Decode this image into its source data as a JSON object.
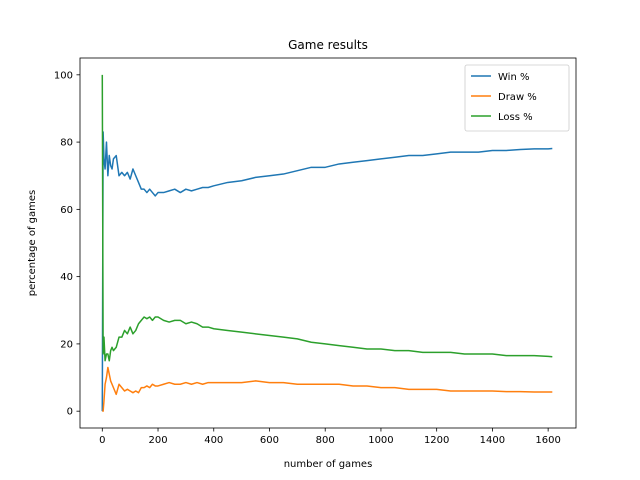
{
  "chart_data": {
    "type": "line",
    "title": "Game results",
    "xlabel": "number of games",
    "ylabel": "percentage of games",
    "xlim": [
      -80,
      1700
    ],
    "ylim": [
      -5,
      105
    ],
    "xticks": [
      0,
      200,
      400,
      600,
      800,
      1000,
      1200,
      1400,
      1600
    ],
    "yticks": [
      0,
      20,
      40,
      60,
      80,
      100
    ],
    "grid": false,
    "legend": "top-right",
    "series": [
      {
        "name": "Win %",
        "color": "#1f77b4",
        "x": [
          0,
          3,
          6,
          10,
          15,
          20,
          25,
          30,
          35,
          40,
          50,
          60,
          70,
          80,
          90,
          100,
          110,
          120,
          130,
          140,
          150,
          160,
          170,
          180,
          190,
          200,
          220,
          240,
          260,
          280,
          300,
          320,
          340,
          360,
          380,
          400,
          450,
          500,
          550,
          600,
          650,
          700,
          750,
          800,
          850,
          900,
          950,
          1000,
          1050,
          1100,
          1150,
          1200,
          1250,
          1300,
          1350,
          1400,
          1450,
          1500,
          1550,
          1600,
          1615
        ],
        "y": [
          0,
          83,
          75,
          72,
          80,
          70,
          76,
          73,
          72,
          75,
          76,
          70,
          71,
          70,
          71,
          69,
          72,
          70,
          68,
          66,
          66,
          65,
          66,
          65,
          64,
          65,
          65,
          65.5,
          66,
          65,
          66,
          65.5,
          66,
          66.5,
          66.5,
          67,
          68,
          68.5,
          69.5,
          70,
          70.5,
          71.5,
          72.5,
          72.5,
          73.5,
          74,
          74.5,
          75,
          75.5,
          76,
          76,
          76.5,
          77,
          77,
          77,
          77.5,
          77.5,
          77.8,
          78,
          78,
          78.1
        ]
      },
      {
        "name": "Draw %",
        "color": "#ff7f0e",
        "x": [
          0,
          3,
          6,
          10,
          15,
          20,
          25,
          30,
          35,
          40,
          50,
          60,
          70,
          80,
          90,
          100,
          110,
          120,
          130,
          140,
          150,
          160,
          170,
          180,
          190,
          200,
          220,
          240,
          260,
          280,
          300,
          320,
          340,
          360,
          380,
          400,
          450,
          500,
          550,
          600,
          650,
          700,
          750,
          800,
          850,
          900,
          950,
          1000,
          1050,
          1100,
          1150,
          1200,
          1250,
          1300,
          1350,
          1400,
          1450,
          1500,
          1550,
          1600,
          1615
        ],
        "y": [
          0,
          0,
          3,
          8,
          10,
          13,
          11,
          9,
          8,
          7,
          5,
          8,
          7,
          6,
          6.5,
          6,
          5.5,
          6,
          5.5,
          7,
          7,
          7.5,
          7,
          8,
          7.5,
          7.5,
          8,
          8.5,
          8,
          8,
          8.5,
          8,
          8.5,
          8,
          8.5,
          8.5,
          8.5,
          8.5,
          9,
          8.5,
          8.5,
          8,
          8,
          8,
          8,
          7.5,
          7.5,
          7,
          7,
          6.5,
          6.5,
          6.5,
          6,
          6,
          6,
          6,
          5.8,
          5.8,
          5.7,
          5.7,
          5.7
        ]
      },
      {
        "name": "Loss %",
        "color": "#2ca02c",
        "x": [
          0,
          3,
          6,
          10,
          15,
          20,
          25,
          30,
          35,
          40,
          50,
          60,
          70,
          80,
          90,
          100,
          110,
          120,
          130,
          140,
          150,
          160,
          170,
          180,
          190,
          200,
          220,
          240,
          260,
          280,
          300,
          320,
          340,
          360,
          380,
          400,
          450,
          500,
          550,
          600,
          650,
          700,
          750,
          800,
          850,
          900,
          950,
          1000,
          1050,
          1100,
          1150,
          1200,
          1250,
          1300,
          1350,
          1400,
          1450,
          1500,
          1550,
          1600,
          1615
        ],
        "y": [
          100,
          17,
          22,
          15,
          17,
          17,
          15,
          18,
          19,
          18,
          19,
          22,
          22,
          24,
          23,
          25,
          23,
          24,
          26,
          27,
          28,
          27.5,
          28,
          27,
          28,
          28,
          27,
          26.5,
          27,
          27,
          26,
          26.5,
          26,
          25,
          25,
          24.5,
          24,
          23.5,
          23,
          22.5,
          22,
          21.5,
          20.5,
          20,
          19.5,
          19,
          18.5,
          18.5,
          18,
          18,
          17.5,
          17.5,
          17.5,
          17,
          17,
          17,
          16.5,
          16.5,
          16.5,
          16.3,
          16.2
        ]
      }
    ]
  }
}
